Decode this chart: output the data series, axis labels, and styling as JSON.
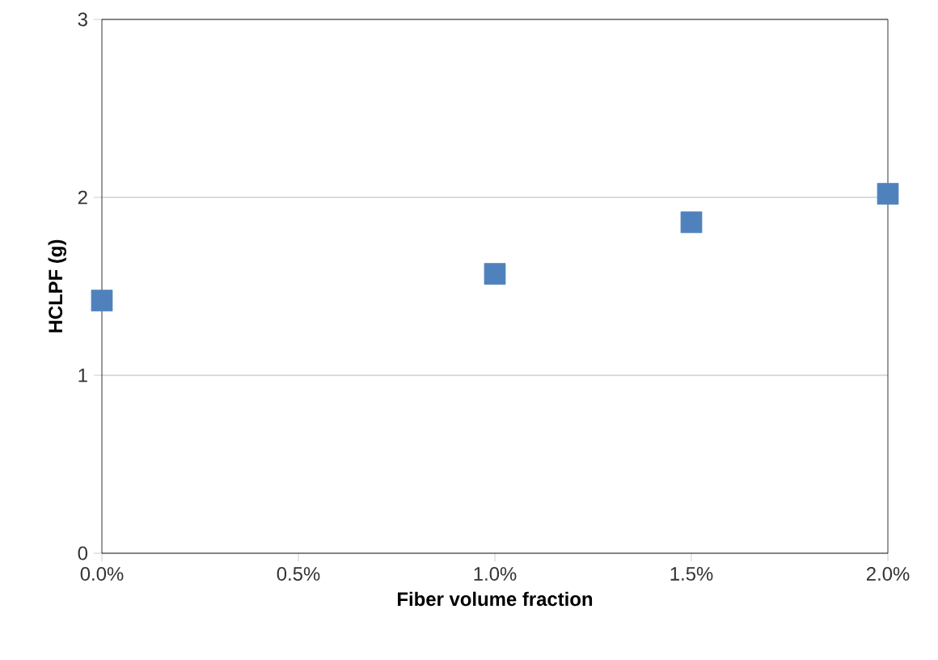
{
  "chart_data": {
    "type": "scatter",
    "xlabel": "Fiber volume fraction",
    "ylabel": "HCLPF (g)",
    "x": [
      0.0,
      1.0,
      1.5,
      2.0
    ],
    "series": [
      {
        "color": "#4f81bd",
        "values": [
          1.42,
          1.57,
          1.86,
          2.02
        ]
      }
    ],
    "xlim": [
      0,
      2
    ],
    "xticks": [
      {
        "value": 0,
        "label": "0.0%"
      },
      {
        "value": 0.5,
        "label": "0.5%"
      },
      {
        "value": 1,
        "label": "1.0%"
      },
      {
        "value": 1.5,
        "label": "1.5%"
      },
      {
        "value": 2,
        "label": "2.0%"
      }
    ],
    "ylim": [
      0,
      3
    ],
    "yticks": [
      0,
      1,
      2,
      3
    ],
    "grid": "y",
    "marker": "square"
  }
}
